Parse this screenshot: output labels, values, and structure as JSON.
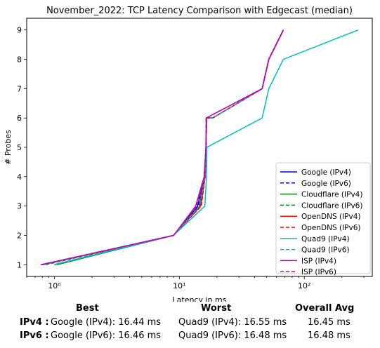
{
  "chart_data": {
    "type": "line",
    "title": "November_2022: TCP Latency Comparison with Edgecast (median)",
    "xlabel": "Latency in ms",
    "ylabel": "# Probes",
    "xscale": "log",
    "xlim": [
      0.6,
      350
    ],
    "ylim": [
      0.6,
      9.4
    ],
    "xticks": [
      1,
      10,
      100
    ],
    "xtick_labels": [
      "10⁰",
      "10¹",
      "10²"
    ],
    "yticks": [
      1,
      2,
      3,
      4,
      5,
      6,
      7,
      8,
      9
    ],
    "grid": false,
    "legend": "bottom-right",
    "series": [
      {
        "name": "Google (IPv4)",
        "color": "#0000cc",
        "dash": "solid",
        "x": [
          1.0,
          9.0,
          14.0,
          15.8,
          16.4,
          16.5,
          18.5,
          46.0,
          52.0,
          68.0
        ],
        "y": [
          1,
          2,
          3,
          4,
          5,
          6,
          6,
          7,
          8,
          9
        ]
      },
      {
        "name": "Google (IPv6)",
        "color": "#0000cc",
        "dash": "dashed",
        "x": [
          0.8,
          9.0,
          14.2,
          15.9,
          16.4,
          16.5,
          18.5,
          46.0,
          52.0,
          68.0
        ],
        "y": [
          1,
          2,
          3,
          4,
          5,
          6,
          6,
          7,
          8,
          9
        ]
      },
      {
        "name": "Cloudflare (IPv4)",
        "color": "#008000",
        "dash": "solid",
        "x": [
          1.05,
          9.0,
          14.5,
          16.0,
          16.4,
          16.5,
          18.5,
          46.0,
          52.0,
          68.0
        ],
        "y": [
          1,
          2,
          3,
          4,
          5,
          6,
          6,
          7,
          8,
          9
        ]
      },
      {
        "name": "Cloudflare (IPv6)",
        "color": "#008000",
        "dash": "dashed",
        "x": [
          0.85,
          9.0,
          14.6,
          16.0,
          16.4,
          16.5,
          18.5,
          46.0,
          52.0,
          68.0
        ],
        "y": [
          1,
          2,
          3,
          4,
          5,
          6,
          6,
          7,
          8,
          9
        ]
      },
      {
        "name": "OpenDNS (IPv4)",
        "color": "#ff0000",
        "dash": "solid",
        "x": [
          1.0,
          9.0,
          14.8,
          16.1,
          16.4,
          16.5,
          18.5,
          46.0,
          52.0,
          68.0
        ],
        "y": [
          1,
          2,
          3,
          4,
          5,
          6,
          6,
          7,
          8,
          9
        ]
      },
      {
        "name": "OpenDNS (IPv6)",
        "color": "#ff0000",
        "dash": "dashed",
        "x": [
          0.82,
          9.0,
          15.0,
          16.1,
          16.4,
          16.5,
          18.5,
          46.0,
          52.0,
          68.0
        ],
        "y": [
          1,
          2,
          3,
          4,
          5,
          6,
          6,
          7,
          8,
          9
        ]
      },
      {
        "name": "Quad9 (IPv4)",
        "color": "#00bfbf",
        "dash": "solid",
        "x": [
          1.0,
          9.0,
          16.0,
          16.5,
          16.6,
          46.0,
          52.0,
          68.0,
          270.0
        ],
        "y": [
          1,
          2,
          3,
          4,
          5,
          6,
          7,
          8,
          9
        ]
      },
      {
        "name": "Quad9 (IPv6)",
        "color": "#00bfbf",
        "dash": "dashed",
        "x": [
          0.82,
          9.0,
          14.5,
          16.0,
          16.4,
          16.5,
          18.5,
          46.0,
          52.0,
          68.0
        ],
        "y": [
          1,
          2,
          3,
          4,
          5,
          6,
          6,
          7,
          8,
          9
        ]
      },
      {
        "name": "ISP (IPv4)",
        "color": "#bf00bf",
        "dash": "solid",
        "x": [
          0.78,
          9.0,
          13.5,
          15.8,
          16.3,
          16.4,
          46.0,
          52.0,
          68.0
        ],
        "y": [
          1,
          2,
          3,
          4,
          5,
          6,
          7,
          8,
          9
        ]
      },
      {
        "name": "ISP (IPv6)",
        "color": "#bf00bf",
        "dash": "dashed",
        "x": [
          0.78,
          9.0,
          13.8,
          15.9,
          16.3,
          16.4,
          46.0,
          52.0,
          68.0
        ],
        "y": [
          1,
          2,
          3,
          4,
          5,
          6,
          7,
          8,
          9
        ]
      }
    ]
  },
  "summary": {
    "headers": {
      "best": "Best",
      "worst": "Worst",
      "avg": "Overall Avg"
    },
    "rows": [
      {
        "label": "IPv4 :",
        "best": "Google (IPv4): 16.44 ms",
        "worst": "Quad9 (IPv4): 16.55 ms",
        "avg": "16.45 ms"
      },
      {
        "label": "IPv6 :",
        "best": "Google (IPv6): 16.46 ms",
        "worst": "Quad9 (IPv6): 16.48 ms",
        "avg": "16.48 ms"
      }
    ]
  }
}
